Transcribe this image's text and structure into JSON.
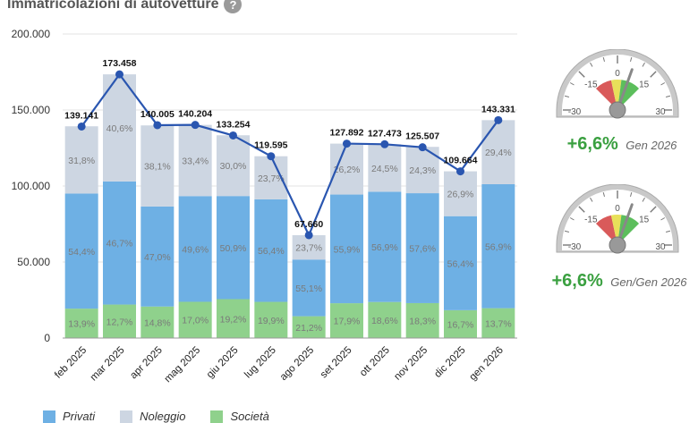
{
  "header": {
    "title": "Immatricolazioni di autovetture",
    "help_icon": "question-icon"
  },
  "colors": {
    "societa": "#8fd18c",
    "privati": "#6eb0e4",
    "noleggio": "#cdd6e2",
    "line": "#2a56b0",
    "positive": "#3aa040"
  },
  "gauges": [
    {
      "value": "+6,6%",
      "label": "Gen 2026",
      "ticks": [
        "-30",
        "-15",
        "0",
        "15",
        "30"
      ],
      "needle": 6.6
    },
    {
      "value": "+6,6%",
      "label": "Gen/Gen 2026",
      "ticks": [
        "-30",
        "-15",
        "0",
        "15",
        "30"
      ],
      "needle": 6.6
    }
  ],
  "chart_data": {
    "type": "bar",
    "stacked": true,
    "categories": [
      "feb 2025",
      "mar 2025",
      "apr 2025",
      "mag 2025",
      "giu 2025",
      "lug 2025",
      "ago 2025",
      "set 2025",
      "ott 2025",
      "nov 2025",
      "dic 2025",
      "gen 2026"
    ],
    "totals": [
      139141,
      173458,
      140005,
      140204,
      133254,
      119595,
      67660,
      127892,
      127473,
      125507,
      109664,
      143331
    ],
    "total_labels": [
      "139.141",
      "173.458",
      "140.005",
      "140.204",
      "133.254",
      "119.595",
      "67.660",
      "127.892",
      "127.473",
      "125.507",
      "109.664",
      "143.331"
    ],
    "series": [
      {
        "name": "Società",
        "percent": [
          13.9,
          12.7,
          14.8,
          17.0,
          19.2,
          19.9,
          21.2,
          17.9,
          18.6,
          18.3,
          16.7,
          13.7
        ],
        "labels": [
          "13,9%",
          "12,7%",
          "14,8%",
          "17,0%",
          "19,2%",
          "19,9%",
          "21,2%",
          "17,9%",
          "18,6%",
          "18,3%",
          "16,7%",
          "13,7%"
        ]
      },
      {
        "name": "Privati",
        "percent": [
          54.4,
          46.7,
          47.0,
          49.6,
          50.9,
          56.4,
          55.1,
          55.9,
          56.9,
          57.6,
          56.4,
          56.9
        ],
        "labels": [
          "54,4%",
          "46,7%",
          "47,0%",
          "49,6%",
          "50,9%",
          "56,4%",
          "55,1%",
          "55,9%",
          "56,9%",
          "57,6%",
          "56,4%",
          "56,9%"
        ]
      },
      {
        "name": "Noleggio",
        "percent": [
          31.8,
          40.6,
          38.1,
          33.4,
          30.0,
          23.7,
          23.7,
          26.2,
          24.5,
          24.3,
          26.9,
          29.4
        ],
        "labels": [
          "31,8%",
          "40,6%",
          "38,1%",
          "33,4%",
          "30,0%",
          "23,7%",
          "23,7%",
          "26,2%",
          "24,5%",
          "24,3%",
          "26,9%",
          "29,4%"
        ]
      }
    ],
    "y_ticks": [
      "0",
      "50.000",
      "100.000",
      "150.000",
      "200.000"
    ],
    "ylim": [
      0,
      200000
    ],
    "grid": true,
    "legend": {
      "position": "bottom",
      "items": [
        "Privati",
        "Noleggio",
        "Società"
      ]
    }
  }
}
